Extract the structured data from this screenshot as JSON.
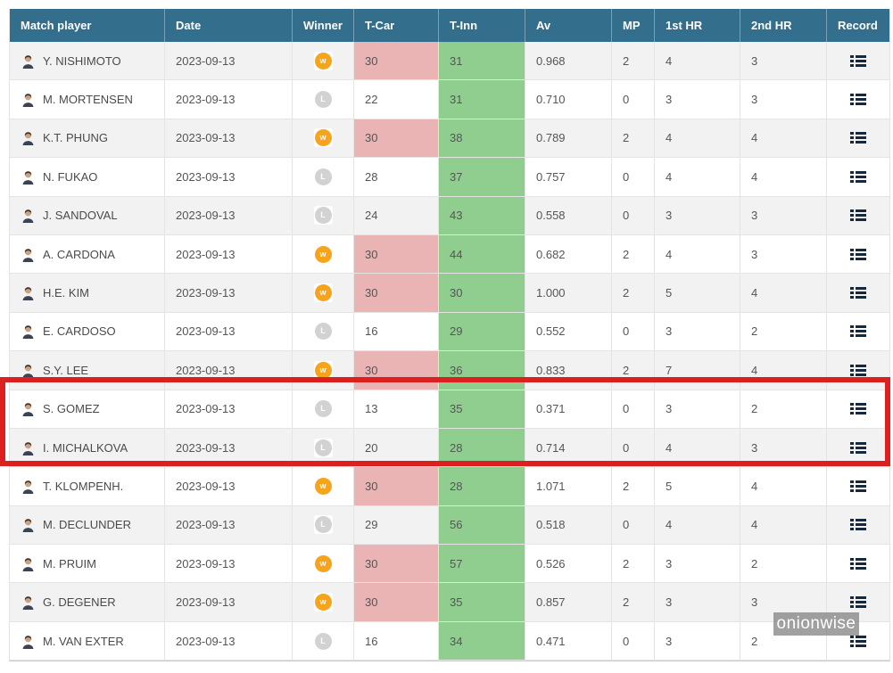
{
  "table": {
    "columns": [
      "Match player",
      "Date",
      "Winner",
      "T-Car",
      "T-Inn",
      "Av",
      "MP",
      "1st HR",
      "2nd HR",
      "Record"
    ],
    "rows": [
      {
        "player": "Y. NISHIMOTO",
        "date": "2023-09-13",
        "result": "W",
        "t_car": "30",
        "t_inn": "31",
        "av": "0.968",
        "mp": "2",
        "hr1": "4",
        "hr2": "3",
        "highlight": false
      },
      {
        "player": "M. MORTENSEN",
        "date": "2023-09-13",
        "result": "L",
        "t_car": "22",
        "t_inn": "31",
        "av": "0.710",
        "mp": "0",
        "hr1": "3",
        "hr2": "3",
        "highlight": false
      },
      {
        "player": "K.T. PHUNG",
        "date": "2023-09-13",
        "result": "W",
        "t_car": "30",
        "t_inn": "38",
        "av": "0.789",
        "mp": "2",
        "hr1": "4",
        "hr2": "4",
        "highlight": false
      },
      {
        "player": "N. FUKAO",
        "date": "2023-09-13",
        "result": "L",
        "t_car": "28",
        "t_inn": "37",
        "av": "0.757",
        "mp": "0",
        "hr1": "4",
        "hr2": "4",
        "highlight": false
      },
      {
        "player": "J. SANDOVAL",
        "date": "2023-09-13",
        "result": "L",
        "t_car": "24",
        "t_inn": "43",
        "av": "0.558",
        "mp": "0",
        "hr1": "3",
        "hr2": "3",
        "highlight": false
      },
      {
        "player": "A. CARDONA",
        "date": "2023-09-13",
        "result": "W",
        "t_car": "30",
        "t_inn": "44",
        "av": "0.682",
        "mp": "2",
        "hr1": "4",
        "hr2": "3",
        "highlight": false
      },
      {
        "player": "H.E. KIM",
        "date": "2023-09-13",
        "result": "W",
        "t_car": "30",
        "t_inn": "30",
        "av": "1.000",
        "mp": "2",
        "hr1": "5",
        "hr2": "4",
        "highlight": false
      },
      {
        "player": "E. CARDOSO",
        "date": "2023-09-13",
        "result": "L",
        "t_car": "16",
        "t_inn": "29",
        "av": "0.552",
        "mp": "0",
        "hr1": "3",
        "hr2": "2",
        "highlight": false
      },
      {
        "player": "S.Y. LEE",
        "date": "2023-09-13",
        "result": "W",
        "t_car": "30",
        "t_inn": "36",
        "av": "0.833",
        "mp": "2",
        "hr1": "7",
        "hr2": "4",
        "highlight": true
      },
      {
        "player": "S. GOMEZ",
        "date": "2023-09-13",
        "result": "L",
        "t_car": "13",
        "t_inn": "35",
        "av": "0.371",
        "mp": "0",
        "hr1": "3",
        "hr2": "2",
        "highlight": true
      },
      {
        "player": "I. MICHALKOVA",
        "date": "2023-09-13",
        "result": "L",
        "t_car": "20",
        "t_inn": "28",
        "av": "0.714",
        "mp": "0",
        "hr1": "4",
        "hr2": "3",
        "highlight": false
      },
      {
        "player": "T. KLOMPENH.",
        "date": "2023-09-13",
        "result": "W",
        "t_car": "30",
        "t_inn": "28",
        "av": "1.071",
        "mp": "2",
        "hr1": "5",
        "hr2": "4",
        "highlight": false
      },
      {
        "player": "M. DECLUNDER",
        "date": "2023-09-13",
        "result": "L",
        "t_car": "29",
        "t_inn": "56",
        "av": "0.518",
        "mp": "0",
        "hr1": "4",
        "hr2": "4",
        "highlight": false
      },
      {
        "player": "M. PRUIM",
        "date": "2023-09-13",
        "result": "W",
        "t_car": "30",
        "t_inn": "57",
        "av": "0.526",
        "mp": "2",
        "hr1": "3",
        "hr2": "2",
        "highlight": false
      },
      {
        "player": "G. DEGENER",
        "date": "2023-09-13",
        "result": "W",
        "t_car": "30",
        "t_inn": "35",
        "av": "0.857",
        "mp": "2",
        "hr1": "3",
        "hr2": "3",
        "highlight": false
      },
      {
        "player": "M. VAN EXTER",
        "date": "2023-09-13",
        "result": "L",
        "t_car": "16",
        "t_inn": "34",
        "av": "0.471",
        "mp": "0",
        "hr1": "3",
        "hr2": "2",
        "highlight": false
      }
    ]
  },
  "badges": {
    "win_letter": "w",
    "loss_letter": "L"
  },
  "icons": {
    "record": "record-list-icon",
    "avatar": "player-avatar-icon",
    "winner_win": "win-circle-badge",
    "winner_loss": "loss-circle-badge"
  },
  "colors": {
    "header_bg": "#346e8d",
    "row_alt": "#f2f2f2",
    "t_car_flag": "#eab4b4",
    "t_inn_green": "#90ce90",
    "win_badge": "#f6a41c",
    "loss_badge": "#d2d2d2",
    "highlight_border": "#dc2020",
    "record_icon": "#16293c"
  },
  "watermark": "onionwise"
}
